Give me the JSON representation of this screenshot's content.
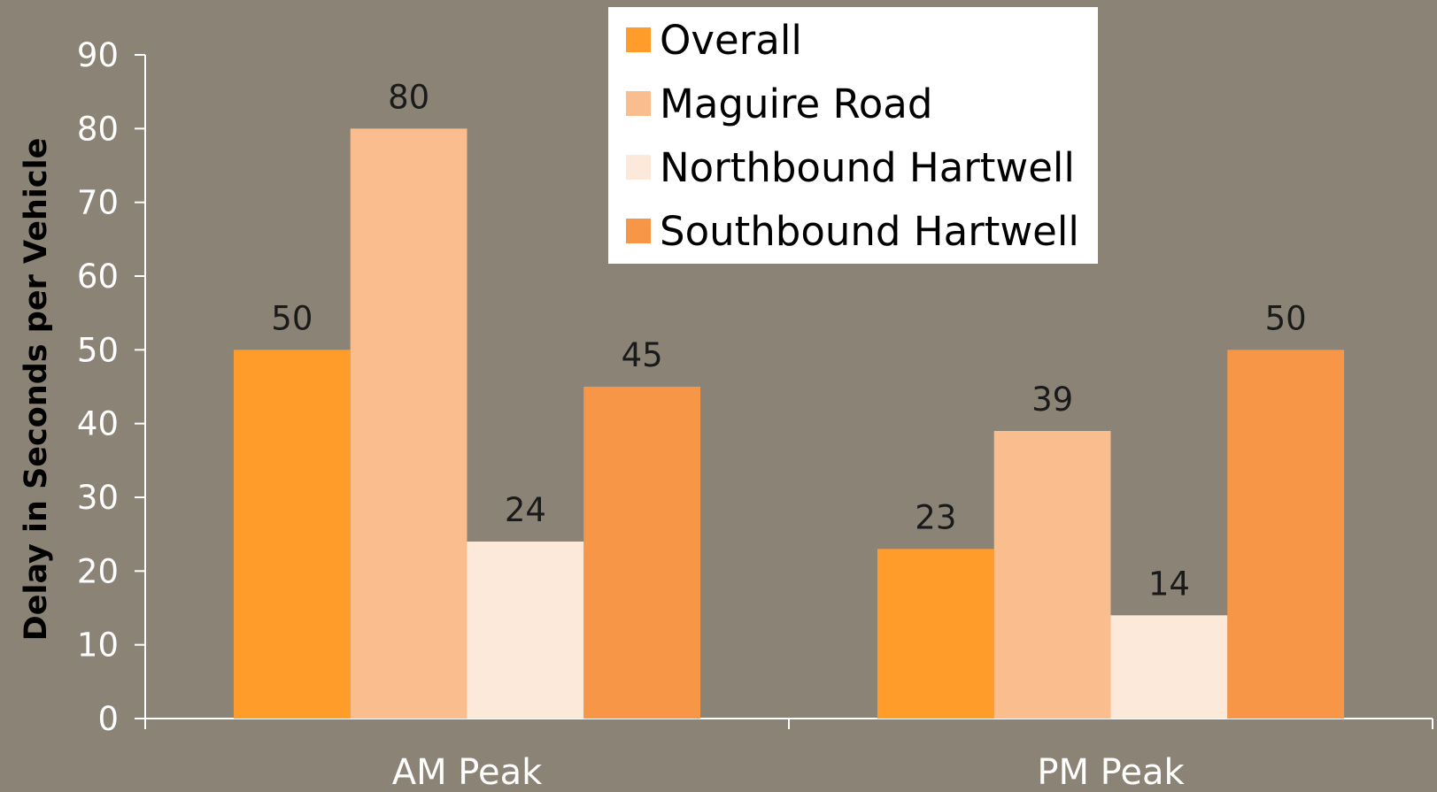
{
  "chart_data": {
    "type": "bar",
    "title": "",
    "xlabel": "",
    "ylabel": "Delay in Seconds per Vehicle",
    "ylim": [
      0,
      90
    ],
    "yticks": [
      0,
      10,
      20,
      30,
      40,
      50,
      60,
      70,
      80,
      90
    ],
    "categories": [
      "AM Peak",
      "PM Peak"
    ],
    "series": [
      {
        "name": "Overall",
        "values": [
          50,
          23
        ],
        "color": "#FF9C2A"
      },
      {
        "name": "Maguire Road",
        "values": [
          80,
          39
        ],
        "color": "#FABD8D"
      },
      {
        "name": "Northbound Hartwell",
        "values": [
          24,
          14
        ],
        "color": "#FDE9DA"
      },
      {
        "name": "Southbound Hartwell",
        "values": [
          45,
          50
        ],
        "color": "#F79646"
      }
    ],
    "data_labels": true,
    "grid": false,
    "legend": "top-center"
  }
}
